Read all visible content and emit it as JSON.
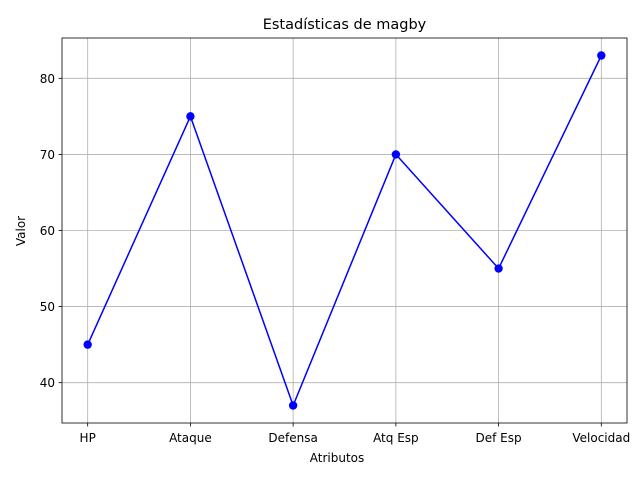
{
  "chart_data": {
    "type": "line",
    "title": "Estadísticas de magby",
    "xlabel": "Atributos",
    "ylabel": "Valor",
    "categories": [
      "HP",
      "Ataque",
      "Defensa",
      "Atq Esp",
      "Def Esp",
      "Velocidad"
    ],
    "series": [
      {
        "name": "magby",
        "values": [
          45,
          75,
          37,
          70,
          55,
          83
        ]
      }
    ],
    "ylim": [
      34.7,
      85.3
    ],
    "yticks": [
      40,
      50,
      60,
      70,
      80
    ],
    "grid": true,
    "line_color": "#0000ff",
    "marker_color": "#0000ff"
  }
}
